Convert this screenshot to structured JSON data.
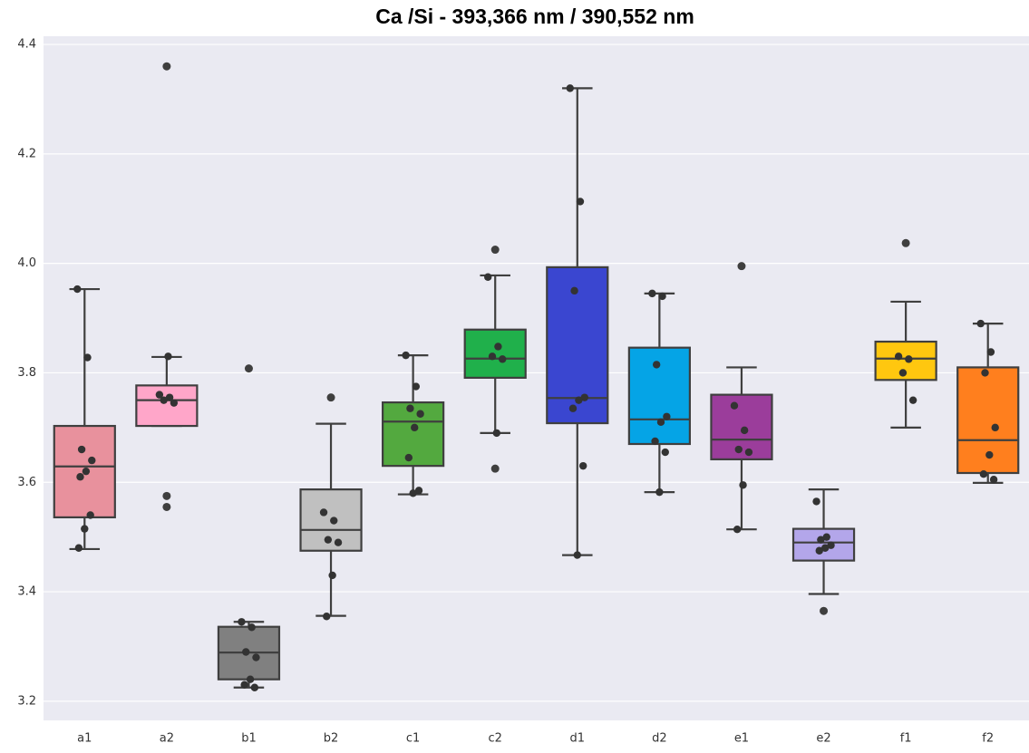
{
  "chart_data": {
    "type": "box",
    "title": "Ca /Si - 393,366 nm / 390,552 nm",
    "categories": [
      "a1",
      "a2",
      "b1",
      "b2",
      "c1",
      "c2",
      "d1",
      "d2",
      "e1",
      "e2",
      "f1",
      "f2"
    ],
    "boxes": [
      {
        "color": "#e8919d",
        "whisker_low": 3.478,
        "q1": 3.536,
        "median": 3.629,
        "q3": 3.703,
        "whisker_high": 3.953,
        "outliers": [],
        "points": [
          3.953,
          3.828,
          3.66,
          3.64,
          3.62,
          3.61,
          3.54,
          3.515,
          3.48
        ]
      },
      {
        "color": "#ffa6c9",
        "whisker_low": 3.703,
        "q1": 3.703,
        "median": 3.75,
        "q3": 3.777,
        "whisker_high": 3.829,
        "outliers": [
          4.36,
          3.575,
          3.555
        ],
        "points": [
          3.76,
          3.755,
          3.75,
          3.745,
          3.83
        ]
      },
      {
        "color": "#808080",
        "whisker_low": 3.225,
        "q1": 3.24,
        "median": 3.289,
        "q3": 3.336,
        "whisker_high": 3.345,
        "outliers": [
          3.808
        ],
        "points": [
          3.345,
          3.335,
          3.29,
          3.28,
          3.24,
          3.23,
          3.225
        ]
      },
      {
        "color": "#c0c0c0",
        "whisker_low": 3.356,
        "q1": 3.475,
        "median": 3.513,
        "q3": 3.587,
        "whisker_high": 3.707,
        "outliers": [
          3.755
        ],
        "points": [
          3.545,
          3.53,
          3.495,
          3.49,
          3.43,
          3.355
        ]
      },
      {
        "color": "#53a93f",
        "whisker_low": 3.578,
        "q1": 3.63,
        "median": 3.711,
        "q3": 3.746,
        "whisker_high": 3.832,
        "outliers": [],
        "points": [
          3.832,
          3.775,
          3.735,
          3.725,
          3.7,
          3.645,
          3.585,
          3.58
        ]
      },
      {
        "color": "#20b04b",
        "whisker_low": 3.69,
        "q1": 3.791,
        "median": 3.826,
        "q3": 3.879,
        "whisker_high": 3.978,
        "outliers": [
          4.025,
          3.625
        ],
        "points": [
          3.975,
          3.848,
          3.83,
          3.825,
          3.69
        ]
      },
      {
        "color": "#3a46d0",
        "whisker_low": 3.467,
        "q1": 3.708,
        "median": 3.754,
        "q3": 3.993,
        "whisker_high": 4.32,
        "outliers": [],
        "points": [
          4.32,
          4.113,
          3.95,
          3.755,
          3.75,
          3.735,
          3.63,
          3.467
        ]
      },
      {
        "color": "#05a4e6",
        "whisker_low": 3.582,
        "q1": 3.67,
        "median": 3.715,
        "q3": 3.846,
        "whisker_high": 3.945,
        "outliers": [],
        "points": [
          3.945,
          3.94,
          3.815,
          3.72,
          3.71,
          3.675,
          3.655,
          3.582
        ]
      },
      {
        "color": "#9b3d9b",
        "whisker_low": 3.514,
        "q1": 3.642,
        "median": 3.678,
        "q3": 3.76,
        "whisker_high": 3.81,
        "outliers": [
          3.995
        ],
        "points": [
          3.74,
          3.695,
          3.66,
          3.655,
          3.595,
          3.514
        ]
      },
      {
        "color": "#b3a6ea",
        "whisker_low": 3.396,
        "q1": 3.457,
        "median": 3.49,
        "q3": 3.515,
        "whisker_high": 3.587,
        "outliers": [
          3.365
        ],
        "points": [
          3.565,
          3.5,
          3.495,
          3.485,
          3.48,
          3.475
        ]
      },
      {
        "color": "#ffc70f",
        "whisker_low": 3.7,
        "q1": 3.787,
        "median": 3.826,
        "q3": 3.857,
        "whisker_high": 3.93,
        "outliers": [
          4.037
        ],
        "points": [
          3.83,
          3.825,
          3.8,
          3.75
        ]
      },
      {
        "color": "#ff7f1e",
        "whisker_low": 3.599,
        "q1": 3.617,
        "median": 3.677,
        "q3": 3.81,
        "whisker_high": 3.89,
        "outliers": [],
        "points": [
          3.89,
          3.838,
          3.8,
          3.7,
          3.65,
          3.615,
          3.605
        ]
      }
    ],
    "ylim": [
      3.165,
      4.415
    ],
    "yticks": [
      3.2,
      3.4,
      3.6,
      3.8,
      {
        "value": 4,
        "label": "4.0"
      },
      4.2,
      4.4
    ],
    "grid": true
  }
}
